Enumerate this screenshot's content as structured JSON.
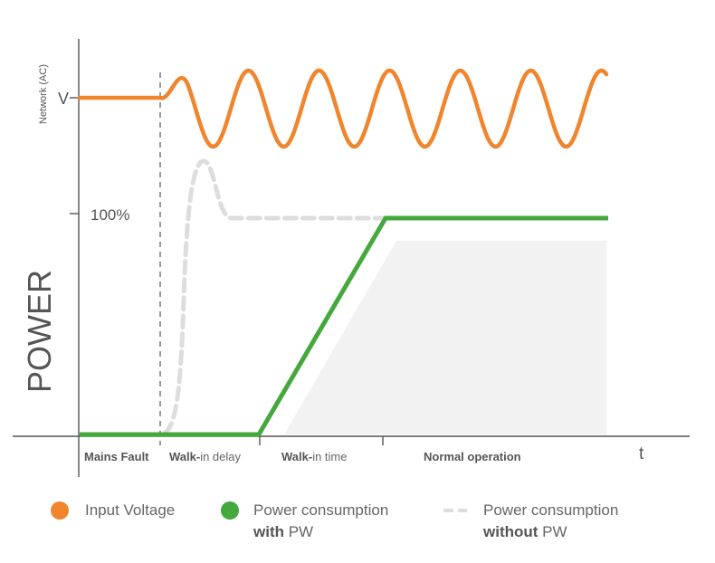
{
  "colors": {
    "input_voltage": "#f0852e",
    "with_pw": "#44a83c",
    "without_pw": "#dddddd",
    "shade": "#f2f2f2",
    "axis": "#555555"
  },
  "labels": {
    "network_axis": "Network (AC)",
    "voltage_tick": "V",
    "percent_tick": "100%",
    "power_axis": "POWER",
    "time_axis": "t"
  },
  "phases": [
    {
      "bold": "Mains Fault",
      "rest": ""
    },
    {
      "bold": "Walk-",
      "rest": "in delay"
    },
    {
      "bold": "Walk-",
      "rest": "in time"
    },
    {
      "bold": "Normal operation",
      "rest": ""
    }
  ],
  "legend": {
    "input_voltage": {
      "icon": "orange-dot-icon",
      "line1": "Input Voltage"
    },
    "with_pw": {
      "icon": "green-dot-icon",
      "line1": "Power consumption",
      "bold": "with",
      "rest": " PW"
    },
    "without_pw": {
      "icon": "dashed-line-icon",
      "line1": "Power consumption",
      "bold": "without",
      "rest": " PW"
    }
  }
}
